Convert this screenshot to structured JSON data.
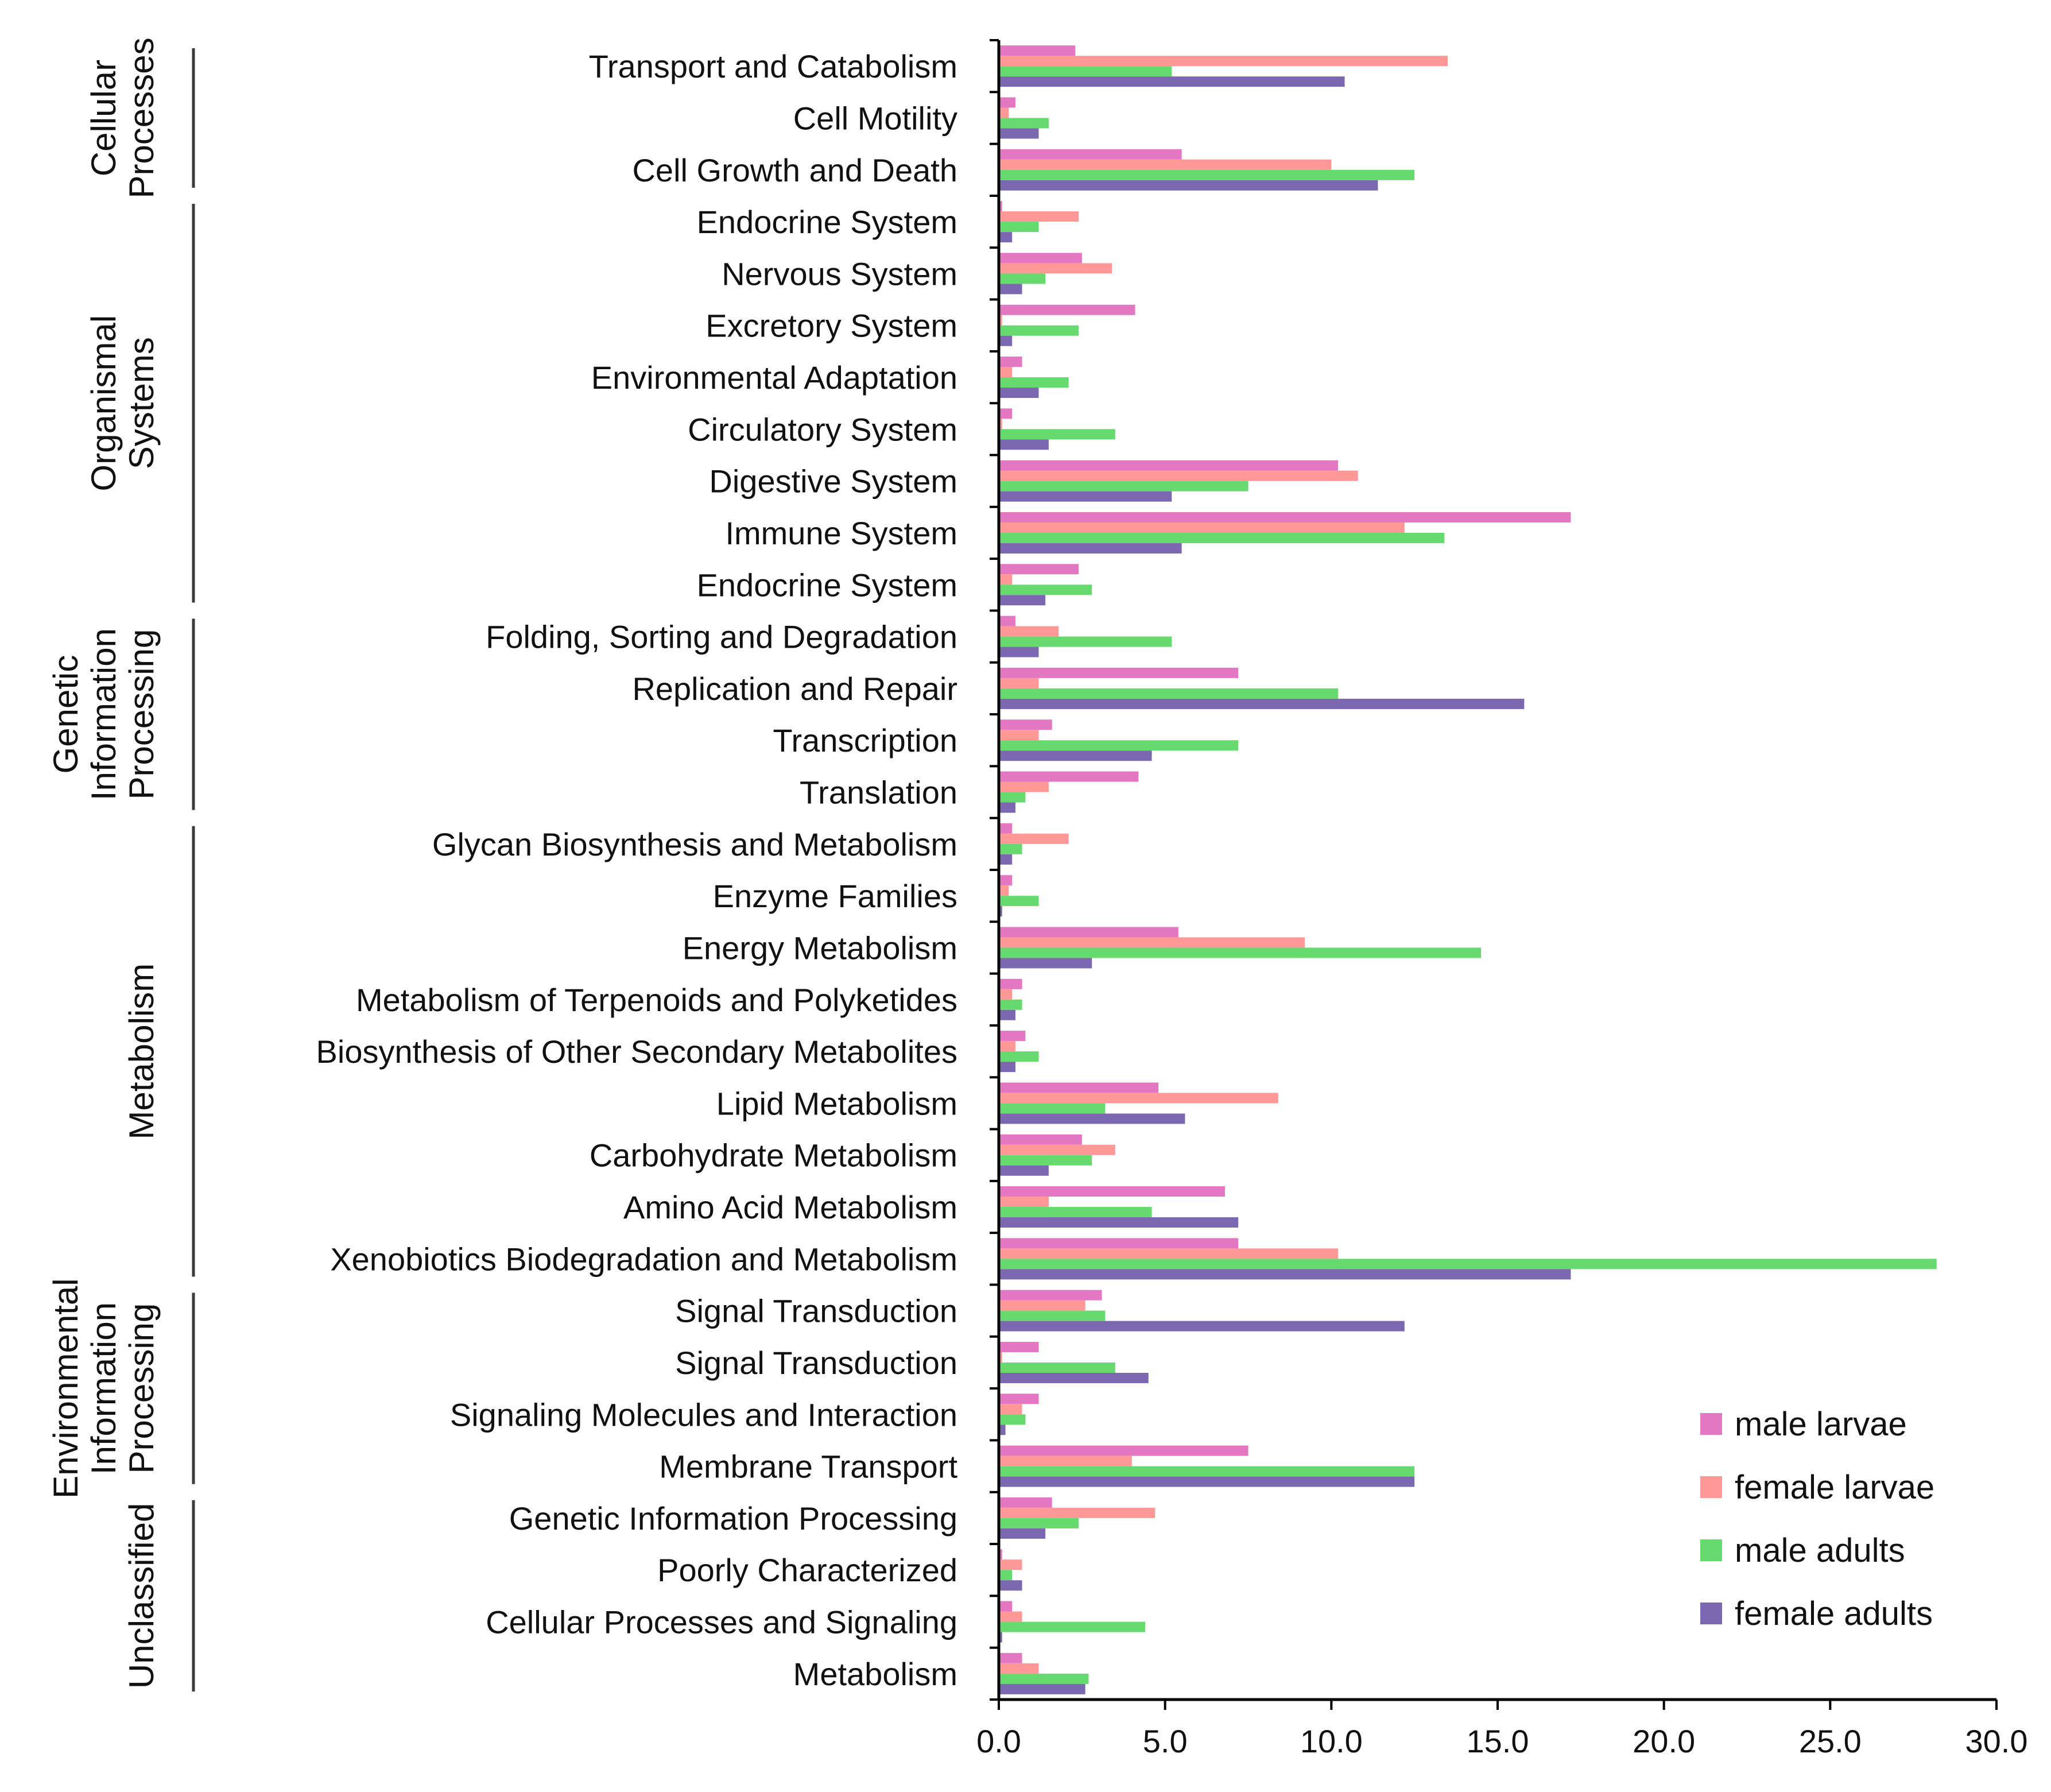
{
  "chart_data": {
    "type": "bar",
    "orientation": "horizontal",
    "categories": [
      "Transport and Catabolism",
      "Cell Motility",
      "Cell Growth and Death",
      "Endocrine System",
      "Nervous System",
      "Excretory System",
      "Environmental Adaptation",
      "Circulatory System",
      "Digestive System",
      "Immune System",
      "Endocrine System",
      "Folding, Sorting and Degradation",
      "Replication and Repair",
      "Transcription",
      "Translation",
      "Glycan Biosynthesis and Metabolism",
      "Enzyme Families",
      "Energy Metabolism",
      "Metabolism of Terpenoids and Polyketides",
      "Biosynthesis of Other Secondary Metabolites",
      "Lipid Metabolism",
      "Carbohydrate Metabolism",
      "Amino Acid Metabolism",
      "Xenobiotics Biodegradation and Metabolism",
      "Signal Transduction",
      "Signal Transduction",
      "Signaling Molecules and Interaction",
      "Membrane Transport",
      "Genetic Information Processing",
      "Poorly Characterized",
      "Cellular Processes and Signaling",
      "Metabolism"
    ],
    "series": [
      {
        "name": "male larvae",
        "color": "#e377c2",
        "values": [
          2.3,
          0.5,
          5.5,
          0.1,
          2.5,
          4.1,
          0.7,
          0.4,
          10.2,
          17.2,
          2.4,
          0.5,
          7.2,
          1.6,
          4.2,
          0.4,
          0.4,
          5.4,
          0.7,
          0.8,
          4.8,
          2.5,
          6.8,
          7.2,
          3.1,
          1.2,
          1.2,
          7.5,
          1.6,
          0.1,
          0.4,
          0.7
        ]
      },
      {
        "name": "female larvae",
        "color": "#ff9896",
        "values": [
          13.5,
          0.3,
          10.0,
          2.4,
          3.4,
          0.1,
          0.4,
          0.1,
          10.8,
          12.2,
          0.4,
          1.8,
          1.2,
          1.2,
          1.5,
          2.1,
          0.3,
          9.2,
          0.4,
          0.5,
          8.4,
          3.5,
          1.5,
          10.2,
          2.6,
          0.1,
          0.7,
          4.0,
          4.7,
          0.7,
          0.7,
          1.2
        ]
      },
      {
        "name": "male adults",
        "color": "#66d96f",
        "values": [
          5.2,
          1.5,
          12.5,
          1.2,
          1.4,
          2.4,
          2.1,
          3.5,
          7.5,
          13.4,
          2.8,
          5.2,
          10.2,
          7.2,
          0.8,
          0.7,
          1.2,
          14.5,
          0.7,
          1.2,
          3.2,
          2.8,
          4.6,
          28.2,
          3.2,
          3.5,
          0.8,
          12.5,
          2.4,
          0.4,
          4.4,
          2.7
        ]
      },
      {
        "name": "female adults",
        "color": "#7b68b0",
        "values": [
          10.4,
          1.2,
          11.4,
          0.4,
          0.7,
          0.4,
          1.2,
          1.5,
          5.2,
          5.5,
          1.4,
          1.2,
          15.8,
          4.6,
          0.5,
          0.4,
          0.1,
          2.8,
          0.5,
          0.5,
          5.6,
          1.5,
          7.2,
          17.2,
          12.2,
          4.5,
          0.2,
          12.5,
          1.4,
          0.7,
          0.1,
          2.6
        ]
      }
    ],
    "x_ticks": [
      "0.0",
      "5.0",
      "10.0",
      "15.0",
      "20.0",
      "25.0",
      "30.0"
    ],
    "xlim": [
      0,
      30
    ],
    "title": "",
    "xlabel": "",
    "ylabel": "",
    "grid": false,
    "legend_position": "bottom-right",
    "groups": [
      {
        "lines": [
          "Cellular",
          "Processes"
        ],
        "from": 0,
        "to": 2
      },
      {
        "lines": [
          "Organismal",
          "Systems"
        ],
        "from": 3,
        "to": 10
      },
      {
        "lines": [
          "Genetic",
          "Information",
          "Processing"
        ],
        "from": 11,
        "to": 14
      },
      {
        "lines": [
          "Metabolism"
        ],
        "from": 15,
        "to": 23
      },
      {
        "lines": [
          "Environmental",
          "Information",
          "Processing"
        ],
        "from": 24,
        "to": 27
      },
      {
        "lines": [
          "Unclassified"
        ],
        "from": 28,
        "to": 31
      }
    ]
  }
}
